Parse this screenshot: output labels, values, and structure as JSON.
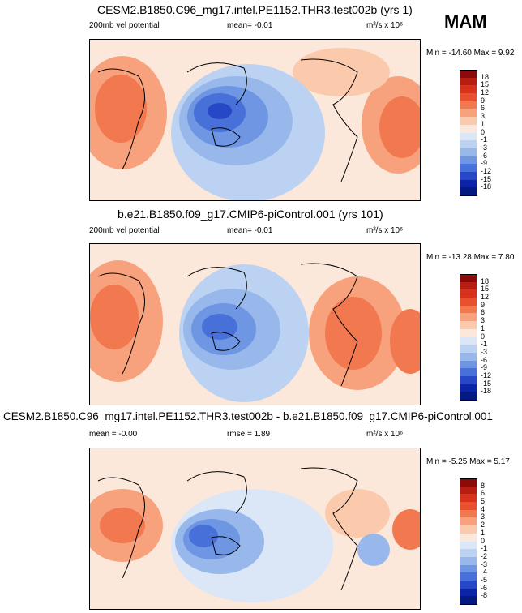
{
  "season": "MAM",
  "chart_data": [
    {
      "type": "heatmap",
      "title": "CESM2.B1850.C96_mg17.intel.PE1152.THR3.test002b (yrs 1)",
      "left_label": "200mb vel potential",
      "center_label": "mean=  -0.01",
      "units_label": "m²/s x 10⁶",
      "minmax_label": "Min = -14.60 Max =    9.92",
      "colorbar_levels": [
        "18",
        "15",
        "12",
        "9",
        "6",
        "3",
        "1",
        "0",
        "-1",
        "-3",
        "-6",
        "-9",
        "-12",
        "-15",
        "-18"
      ],
      "colorbar_colors": [
        "#8b0b0b",
        "#b81d12",
        "#d8321c",
        "#e9502f",
        "#f2784f",
        "#f7a27c",
        "#fbcaad",
        "#fbe8da",
        "#dbe6f7",
        "#bcd2f2",
        "#98b8ec",
        "#6e96e3",
        "#4870d9",
        "#2748c6",
        "#0d23a8",
        "#051a80"
      ]
    },
    {
      "type": "heatmap",
      "title": "b.e21.B1850.f09_g17.CMIP6-piControl.001 (yrs 101)",
      "left_label": "200mb vel potential",
      "center_label": "mean=  -0.01",
      "units_label": "m²/s x 10⁶",
      "minmax_label": "Min = -13.28 Max =    7.80",
      "colorbar_levels": [
        "18",
        "15",
        "12",
        "9",
        "6",
        "3",
        "1",
        "0",
        "-1",
        "-3",
        "-6",
        "-9",
        "-12",
        "-15",
        "-18"
      ],
      "colorbar_colors": [
        "#8b0b0b",
        "#b81d12",
        "#d8321c",
        "#e9502f",
        "#f2784f",
        "#f7a27c",
        "#fbcaad",
        "#fbe8da",
        "#dbe6f7",
        "#bcd2f2",
        "#98b8ec",
        "#6e96e3",
        "#4870d9",
        "#2748c6",
        "#0d23a8",
        "#051a80"
      ]
    },
    {
      "type": "heatmap",
      "title": "CESM2.B1850.C96_mg17.intel.PE1152.THR3.test002b - b.e21.B1850.f09_g17.CMIP6-piControl.001",
      "left_label": "mean = -0.00",
      "center_label": "rmse =   1.89",
      "units_label": "m²/s x 10⁶",
      "minmax_label": "Min =  -5.25 Max =    5.17",
      "colorbar_levels": [
        "8",
        "6",
        "5",
        "4",
        "3",
        "2",
        "1",
        "0",
        "-1",
        "-2",
        "-3",
        "-4",
        "-5",
        "-6",
        "-8"
      ],
      "colorbar_colors": [
        "#8b0b0b",
        "#b81d12",
        "#d8321c",
        "#e9502f",
        "#f2784f",
        "#f7a27c",
        "#fbcaad",
        "#fbe8da",
        "#dbe6f7",
        "#bcd2f2",
        "#98b8ec",
        "#6e96e3",
        "#4870d9",
        "#2748c6",
        "#0d23a8",
        "#051a80"
      ]
    }
  ]
}
